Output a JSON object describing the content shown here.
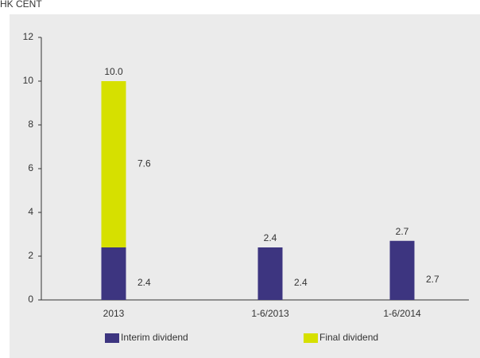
{
  "chart_data": {
    "type": "bar",
    "stacked": true,
    "y_label": "HK CENT",
    "categories": [
      "2013",
      "1-6/2013",
      "1-6/2014"
    ],
    "series": [
      {
        "name": "Interim dividend",
        "color": "#3d3580",
        "values": [
          2.4,
          2.4,
          2.7
        ]
      },
      {
        "name": "Final dividend",
        "color": "#d6e000",
        "values": [
          7.6,
          null,
          null
        ]
      }
    ],
    "totals": {
      "values": [
        10,
        2.4,
        2.7
      ],
      "value_labels": [
        "10.0",
        "2.4",
        "2.7"
      ]
    },
    "ylim": [
      0,
      12
    ],
    "yticks": [
      0,
      2,
      4,
      6,
      8,
      10,
      12
    ]
  }
}
